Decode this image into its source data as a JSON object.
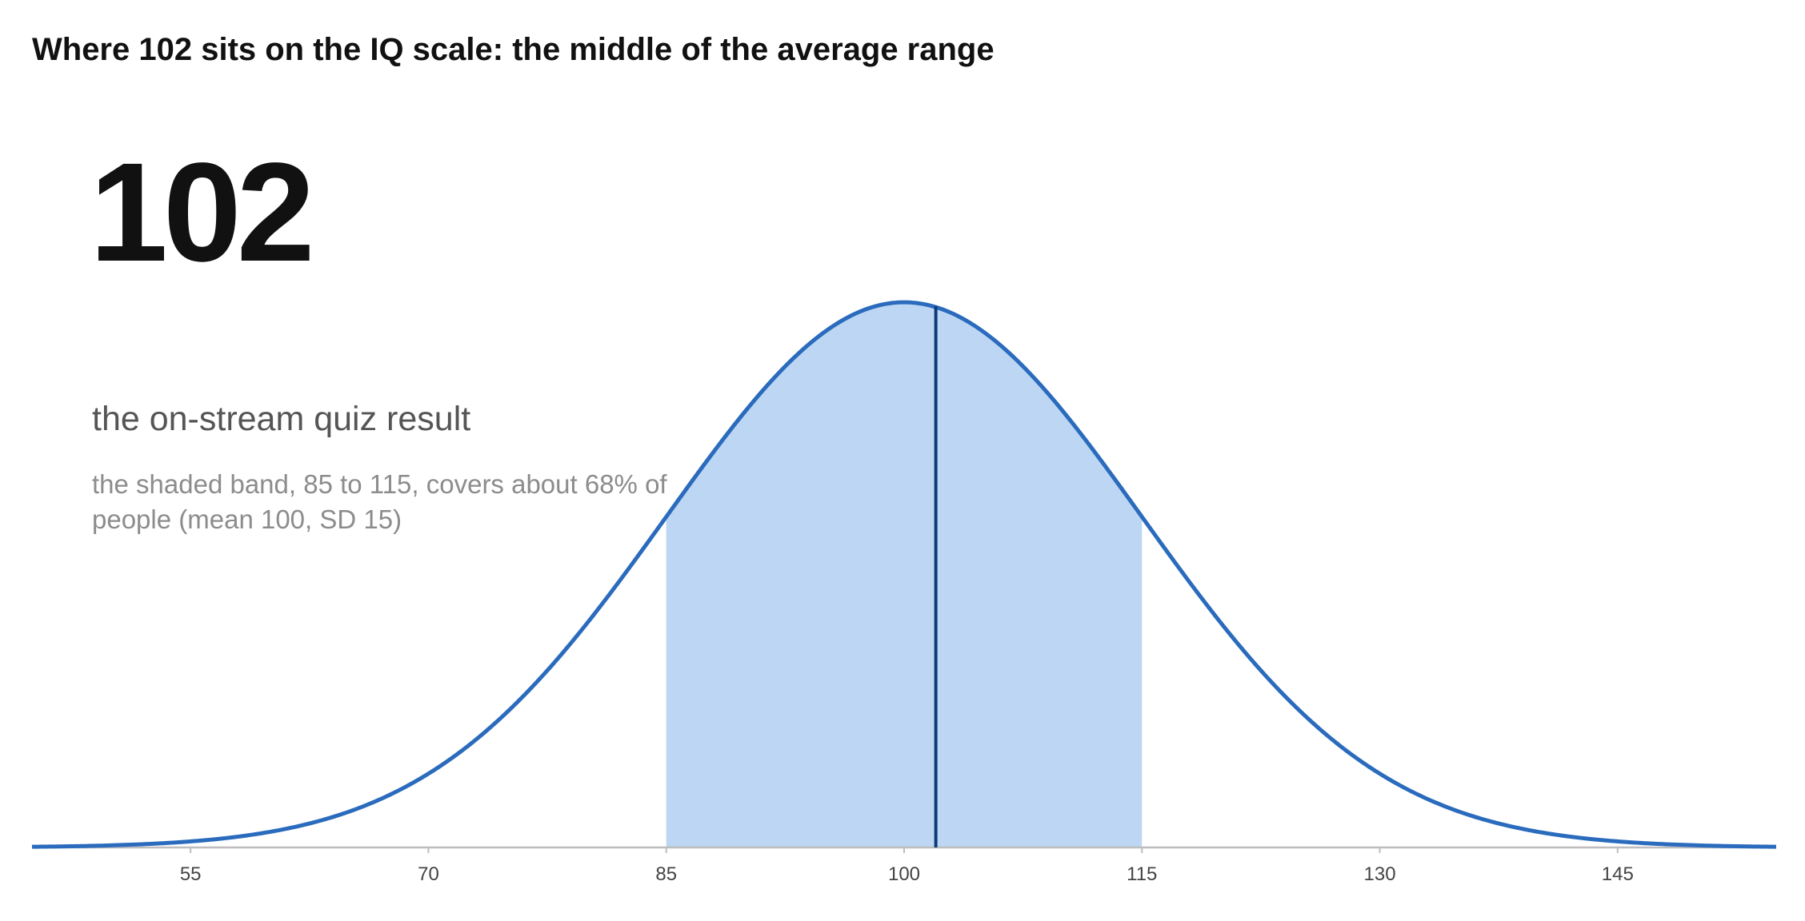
{
  "chart_data": {
    "type": "area",
    "title": "Where 102 sits on the IQ scale: the middle of the average range",
    "highlight_value": "102",
    "highlight_label": "the on-stream quiz result",
    "note": "the shaded band, 85 to 115, covers about 68% of people (mean 100, SD 15)",
    "distribution": {
      "kind": "normal",
      "mean": 100,
      "sd": 15
    },
    "shaded_band": [
      85,
      115
    ],
    "marker_x": 102,
    "xlim": [
      45,
      155
    ],
    "ylim": [
      0,
      0.0266
    ],
    "x_ticks": [
      55,
      70,
      85,
      100,
      115,
      130,
      145
    ],
    "x_tick_labels": [
      "55",
      "70",
      "85",
      "100",
      "115",
      "130",
      "145"
    ],
    "xlabel": "",
    "ylabel": "",
    "grid": false,
    "colors": {
      "curve": "#2a6bbd",
      "band": "#bcd6f3",
      "marker": "#0d3b7a",
      "axis": "#bdbdbd",
      "title": "#111111",
      "subtitle": "#555555",
      "note": "#8c8c8c"
    }
  }
}
